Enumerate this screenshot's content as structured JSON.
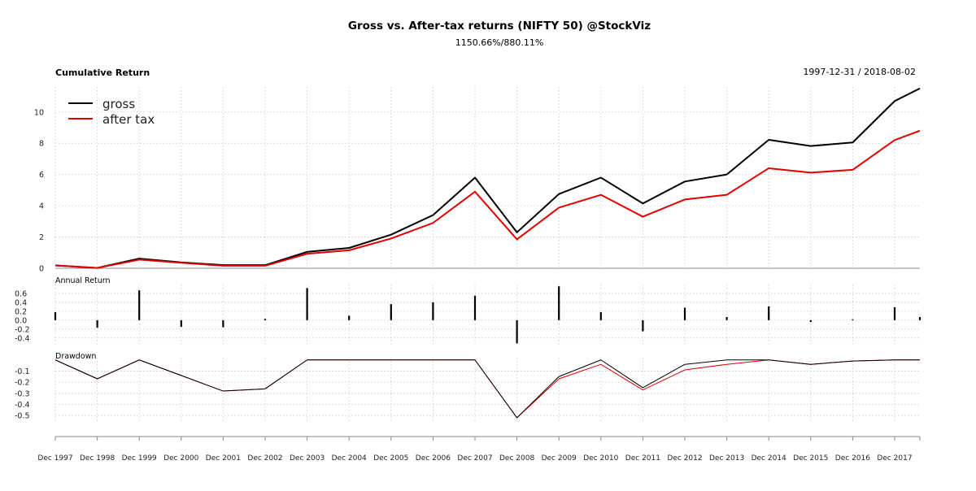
{
  "header": {
    "title": "Gross vs. After-tax returns (NIFTY 50) @StockViz",
    "subtitle": "1150.66%/880.11%",
    "panel_title": "Cumulative Return",
    "date_range": "1997-12-31 / 2018-08-02"
  },
  "colors": {
    "gross": "#000000",
    "after_tax": "#e00000"
  },
  "chart_data": [
    {
      "type": "line",
      "title": "Cumulative Return",
      "categories": [
        "Dec 1997",
        "Dec 1998",
        "Dec 1999",
        "Dec 2000",
        "Dec 2001",
        "Dec 2002",
        "Dec 2003",
        "Dec 2004",
        "Dec 2005",
        "Dec 2006",
        "Dec 2007",
        "Dec 2008",
        "Dec 2009",
        "Dec 2010",
        "Dec 2011",
        "Dec 2012",
        "Dec 2013",
        "Dec 2014",
        "Dec 2015",
        "Dec 2016",
        "Dec 2017",
        "2018-08-02"
      ],
      "series": [
        {
          "name": "gross",
          "color": "#000000",
          "values": [
            0.18,
            0.02,
            0.62,
            0.38,
            0.2,
            0.2,
            1.05,
            1.3,
            2.15,
            3.4,
            5.8,
            2.3,
            4.75,
            5.8,
            4.15,
            5.55,
            6.0,
            8.22,
            7.82,
            8.05,
            10.7,
            11.51
          ]
        },
        {
          "name": "after tax",
          "color": "#e00000",
          "values": [
            0.18,
            0.02,
            0.55,
            0.35,
            0.16,
            0.16,
            0.93,
            1.15,
            1.9,
            2.9,
            4.9,
            1.85,
            3.88,
            4.7,
            3.3,
            4.4,
            4.7,
            6.4,
            6.12,
            6.3,
            8.2,
            8.8
          ]
        }
      ],
      "yticks": [
        0,
        2,
        4,
        6,
        8,
        10
      ],
      "ylim": [
        0,
        11.6
      ],
      "grid": true,
      "legend": "top-left"
    },
    {
      "type": "bar",
      "title": "Annual Return",
      "categories": [
        "Dec 1997",
        "Dec 1998",
        "Dec 1999",
        "Dec 2000",
        "Dec 2001",
        "Dec 2002",
        "Dec 2003",
        "Dec 2004",
        "Dec 2005",
        "Dec 2006",
        "Dec 2007",
        "Dec 2008",
        "Dec 2009",
        "Dec 2010",
        "Dec 2011",
        "Dec 2012",
        "Dec 2013",
        "Dec 2014",
        "Dec 2015",
        "Dec 2016",
        "Dec 2017",
        "2018-08-02"
      ],
      "values": [
        0.18,
        -0.17,
        0.67,
        -0.15,
        -0.16,
        0.03,
        0.72,
        0.1,
        0.36,
        0.4,
        0.55,
        -0.52,
        0.76,
        0.18,
        -0.25,
        0.28,
        0.07,
        0.31,
        -0.04,
        0.02,
        0.29,
        0.07
      ],
      "yticks": [
        0.6,
        0.4,
        0.2,
        0.0,
        -0.2,
        -0.4
      ],
      "ytick_labels": [
        "0.6",
        "0.4",
        "0.2",
        "0.0",
        "-0.2",
        "-0.4"
      ],
      "ylim": [
        -0.55,
        0.8
      ],
      "grid": true
    },
    {
      "type": "line",
      "title": "Drawdown",
      "categories": [
        "Dec 1997",
        "Dec 1998",
        "Dec 1999",
        "Dec 2000",
        "Dec 2001",
        "Dec 2002",
        "Dec 2003",
        "Dec 2004",
        "Dec 2005",
        "Dec 2006",
        "Dec 2007",
        "Dec 2008",
        "Dec 2009",
        "Dec 2010",
        "Dec 2011",
        "Dec 2012",
        "Dec 2013",
        "Dec 2014",
        "Dec 2015",
        "Dec 2016",
        "Dec 2017",
        "2018-08-02"
      ],
      "series": [
        {
          "name": "gross",
          "color": "#000000",
          "values": [
            0.0,
            -0.17,
            0.0,
            -0.14,
            -0.28,
            -0.26,
            0.0,
            0.0,
            0.0,
            0.0,
            0.0,
            -0.52,
            -0.15,
            0.0,
            -0.25,
            -0.04,
            0.0,
            0.0,
            -0.04,
            -0.01,
            0.0,
            0.0
          ]
        },
        {
          "name": "after tax",
          "color": "#e00000",
          "values": [
            0.0,
            -0.17,
            0.0,
            -0.14,
            -0.28,
            -0.26,
            0.0,
            0.0,
            0.0,
            0.0,
            0.0,
            -0.52,
            -0.17,
            -0.04,
            -0.27,
            -0.09,
            -0.04,
            0.0,
            -0.04,
            -0.01,
            0.0,
            0.0
          ]
        }
      ],
      "yticks": [
        -0.1,
        -0.2,
        -0.3,
        -0.4,
        -0.5
      ],
      "ytick_labels": [
        "-0.1",
        "-0.2",
        "-0.3",
        "-0.4",
        "-0.5"
      ],
      "ylim": [
        -0.55,
        0.02
      ],
      "grid": true
    }
  ],
  "x_axis": {
    "tick_labels": [
      "Dec 1997",
      "Dec 1998",
      "Dec 1999",
      "Dec 2000",
      "Dec 2001",
      "Dec 2002",
      "Dec 2003",
      "Dec 2004",
      "Dec 2005",
      "Dec 2006",
      "Dec 2007",
      "Dec 2008",
      "Dec 2009",
      "Dec 2010",
      "Dec 2011",
      "Dec 2012",
      "Dec 2013",
      "Dec 2014",
      "Dec 2015",
      "Dec 2016",
      "Dec 2017"
    ]
  }
}
